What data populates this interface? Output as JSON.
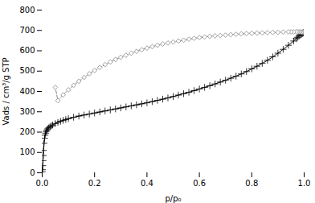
{
  "chart_data": {
    "type": "line",
    "xlabel": "p/p₀",
    "ylabel": "Vads / cm³/g STP",
    "xlim": [
      0,
      1.0
    ],
    "ylim": [
      0,
      800
    ],
    "xticks": [
      {
        "value": 0,
        "label": "0.0"
      },
      0.2,
      0.4,
      0.6,
      0.8,
      {
        "value": 1.0,
        "label": "1.0"
      }
    ],
    "yticks": [
      0,
      100,
      200,
      300,
      400,
      500,
      600,
      700,
      800
    ],
    "series": [
      {
        "color": "#000000",
        "marker": "plus",
        "line_style": "solid",
        "x": [
          0.0005,
          0.001,
          0.002,
          0.003,
          0.004,
          0.005,
          0.007,
          0.009,
          0.011,
          0.013,
          0.015,
          0.018,
          0.021,
          0.025,
          0.03,
          0.035,
          0.04,
          0.05,
          0.06,
          0.07,
          0.08,
          0.09,
          0.1,
          0.12,
          0.14,
          0.16,
          0.18,
          0.2,
          0.22,
          0.24,
          0.26,
          0.28,
          0.3,
          0.32,
          0.34,
          0.36,
          0.38,
          0.4,
          0.42,
          0.44,
          0.46,
          0.48,
          0.5,
          0.52,
          0.54,
          0.56,
          0.58,
          0.6,
          0.62,
          0.64,
          0.66,
          0.68,
          0.7,
          0.72,
          0.74,
          0.76,
          0.78,
          0.8,
          0.82,
          0.84,
          0.86,
          0.88,
          0.9,
          0.92,
          0.94,
          0.96,
          0.97,
          0.975,
          0.98,
          0.985,
          0.99,
          0.993,
          0.996,
          0.998,
          0.999
        ],
        "values": [
          5,
          15,
          35,
          60,
          85,
          110,
          145,
          170,
          185,
          195,
          203,
          210,
          216,
          221,
          226,
          231,
          235,
          242,
          248,
          253,
          258,
          262,
          266,
          273,
          279,
          284,
          289,
          294,
          299,
          304,
          309,
          314,
          319,
          324,
          329,
          334,
          339,
          344,
          350,
          356,
          362,
          368,
          375,
          382,
          389,
          396,
          404,
          412,
          420,
          428,
          437,
          446,
          455,
          465,
          475,
          486,
          498,
          511,
          524,
          538,
          553,
          570,
          588,
          607,
          627,
          648,
          660,
          666,
          672,
          677,
          681,
          684,
          687,
          689,
          691
        ]
      },
      {
        "color": "#888888",
        "marker": "diamond",
        "line_style": "dashed",
        "x": [
          0.999,
          0.998,
          0.996,
          0.993,
          0.99,
          0.985,
          0.98,
          0.975,
          0.97,
          0.96,
          0.95,
          0.94,
          0.92,
          0.9,
          0.88,
          0.86,
          0.84,
          0.82,
          0.8,
          0.78,
          0.76,
          0.74,
          0.72,
          0.7,
          0.68,
          0.66,
          0.64,
          0.62,
          0.6,
          0.58,
          0.56,
          0.54,
          0.52,
          0.5,
          0.48,
          0.46,
          0.44,
          0.42,
          0.4,
          0.38,
          0.36,
          0.34,
          0.32,
          0.3,
          0.28,
          0.26,
          0.24,
          0.22,
          0.2,
          0.18,
          0.16,
          0.14,
          0.12,
          0.1,
          0.08,
          0.06,
          0.05
        ],
        "values": [
          691,
          691,
          692,
          692,
          692,
          693,
          693,
          693,
          693,
          693,
          693,
          693,
          692,
          691,
          690,
          689,
          688,
          687,
          686,
          685,
          683,
          681,
          679,
          677,
          675,
          673,
          671,
          668,
          665,
          661,
          657,
          652,
          648,
          643,
          638,
          633,
          627,
          620,
          613,
          605,
          597,
          588,
          578,
          568,
          557,
          545,
          532,
          518,
          503,
          487,
          469,
          450,
          430,
          408,
          383,
          355,
          420
        ]
      }
    ]
  }
}
